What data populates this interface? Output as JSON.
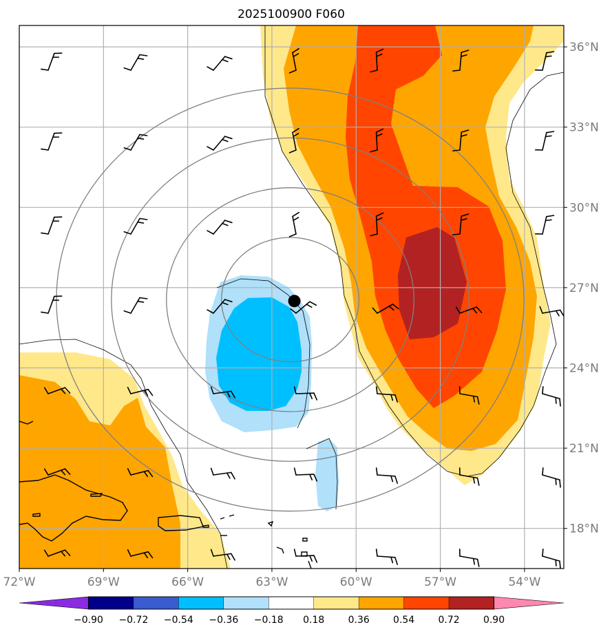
{
  "title": "2025100900 F060",
  "map": {
    "lon_range": [
      -72.0,
      -52.6
    ],
    "lat_range": [
      16.5,
      36.8
    ],
    "lon_ticks": [
      {
        "value": -72,
        "label": "72°W"
      },
      {
        "value": -69,
        "label": "69°W"
      },
      {
        "value": -66,
        "label": "66°W"
      },
      {
        "value": -63,
        "label": "63°W"
      },
      {
        "value": -60,
        "label": "60°W"
      },
      {
        "value": -57,
        "label": "57°W"
      },
      {
        "value": -54,
        "label": "54°W"
      }
    ],
    "lat_ticks": [
      {
        "value": 36,
        "label": "36°N"
      },
      {
        "value": 33,
        "label": "33°N"
      },
      {
        "value": 30,
        "label": "30°N"
      },
      {
        "value": 27,
        "label": "27°N"
      },
      {
        "value": 24,
        "label": "24°N"
      },
      {
        "value": 21,
        "label": "21°N"
      },
      {
        "value": 18,
        "label": "18°N"
      }
    ],
    "storm_center": {
      "lon": -62.2,
      "lat": 26.5
    },
    "range_rings_deg": [
      2.5,
      4.5,
      6.5,
      8.5
    ],
    "grid_lines": true,
    "colors": {
      "gridline": "#b0b0b0",
      "ring": "#808080",
      "coast": "#000000",
      "storm_marker": "#000000"
    }
  },
  "colorbar": {
    "levels": [
      -0.9,
      -0.72,
      -0.54,
      -0.36,
      -0.18,
      0.18,
      0.36,
      0.54,
      0.72,
      0.9
    ],
    "labels": [
      "−0.90",
      "−0.72",
      "−0.54",
      "−0.36",
      "−0.18",
      "0.18",
      "0.36",
      "0.54",
      "0.72",
      "0.90"
    ],
    "colors": [
      "#8a2be2",
      "#00008b",
      "#3b5bd1",
      "#00bfff",
      "#b0e0fa",
      "#ffffff",
      "#ffe88a",
      "#ffa500",
      "#ff4500",
      "#b22222",
      "#ff88b0"
    ],
    "extend": "both"
  }
}
